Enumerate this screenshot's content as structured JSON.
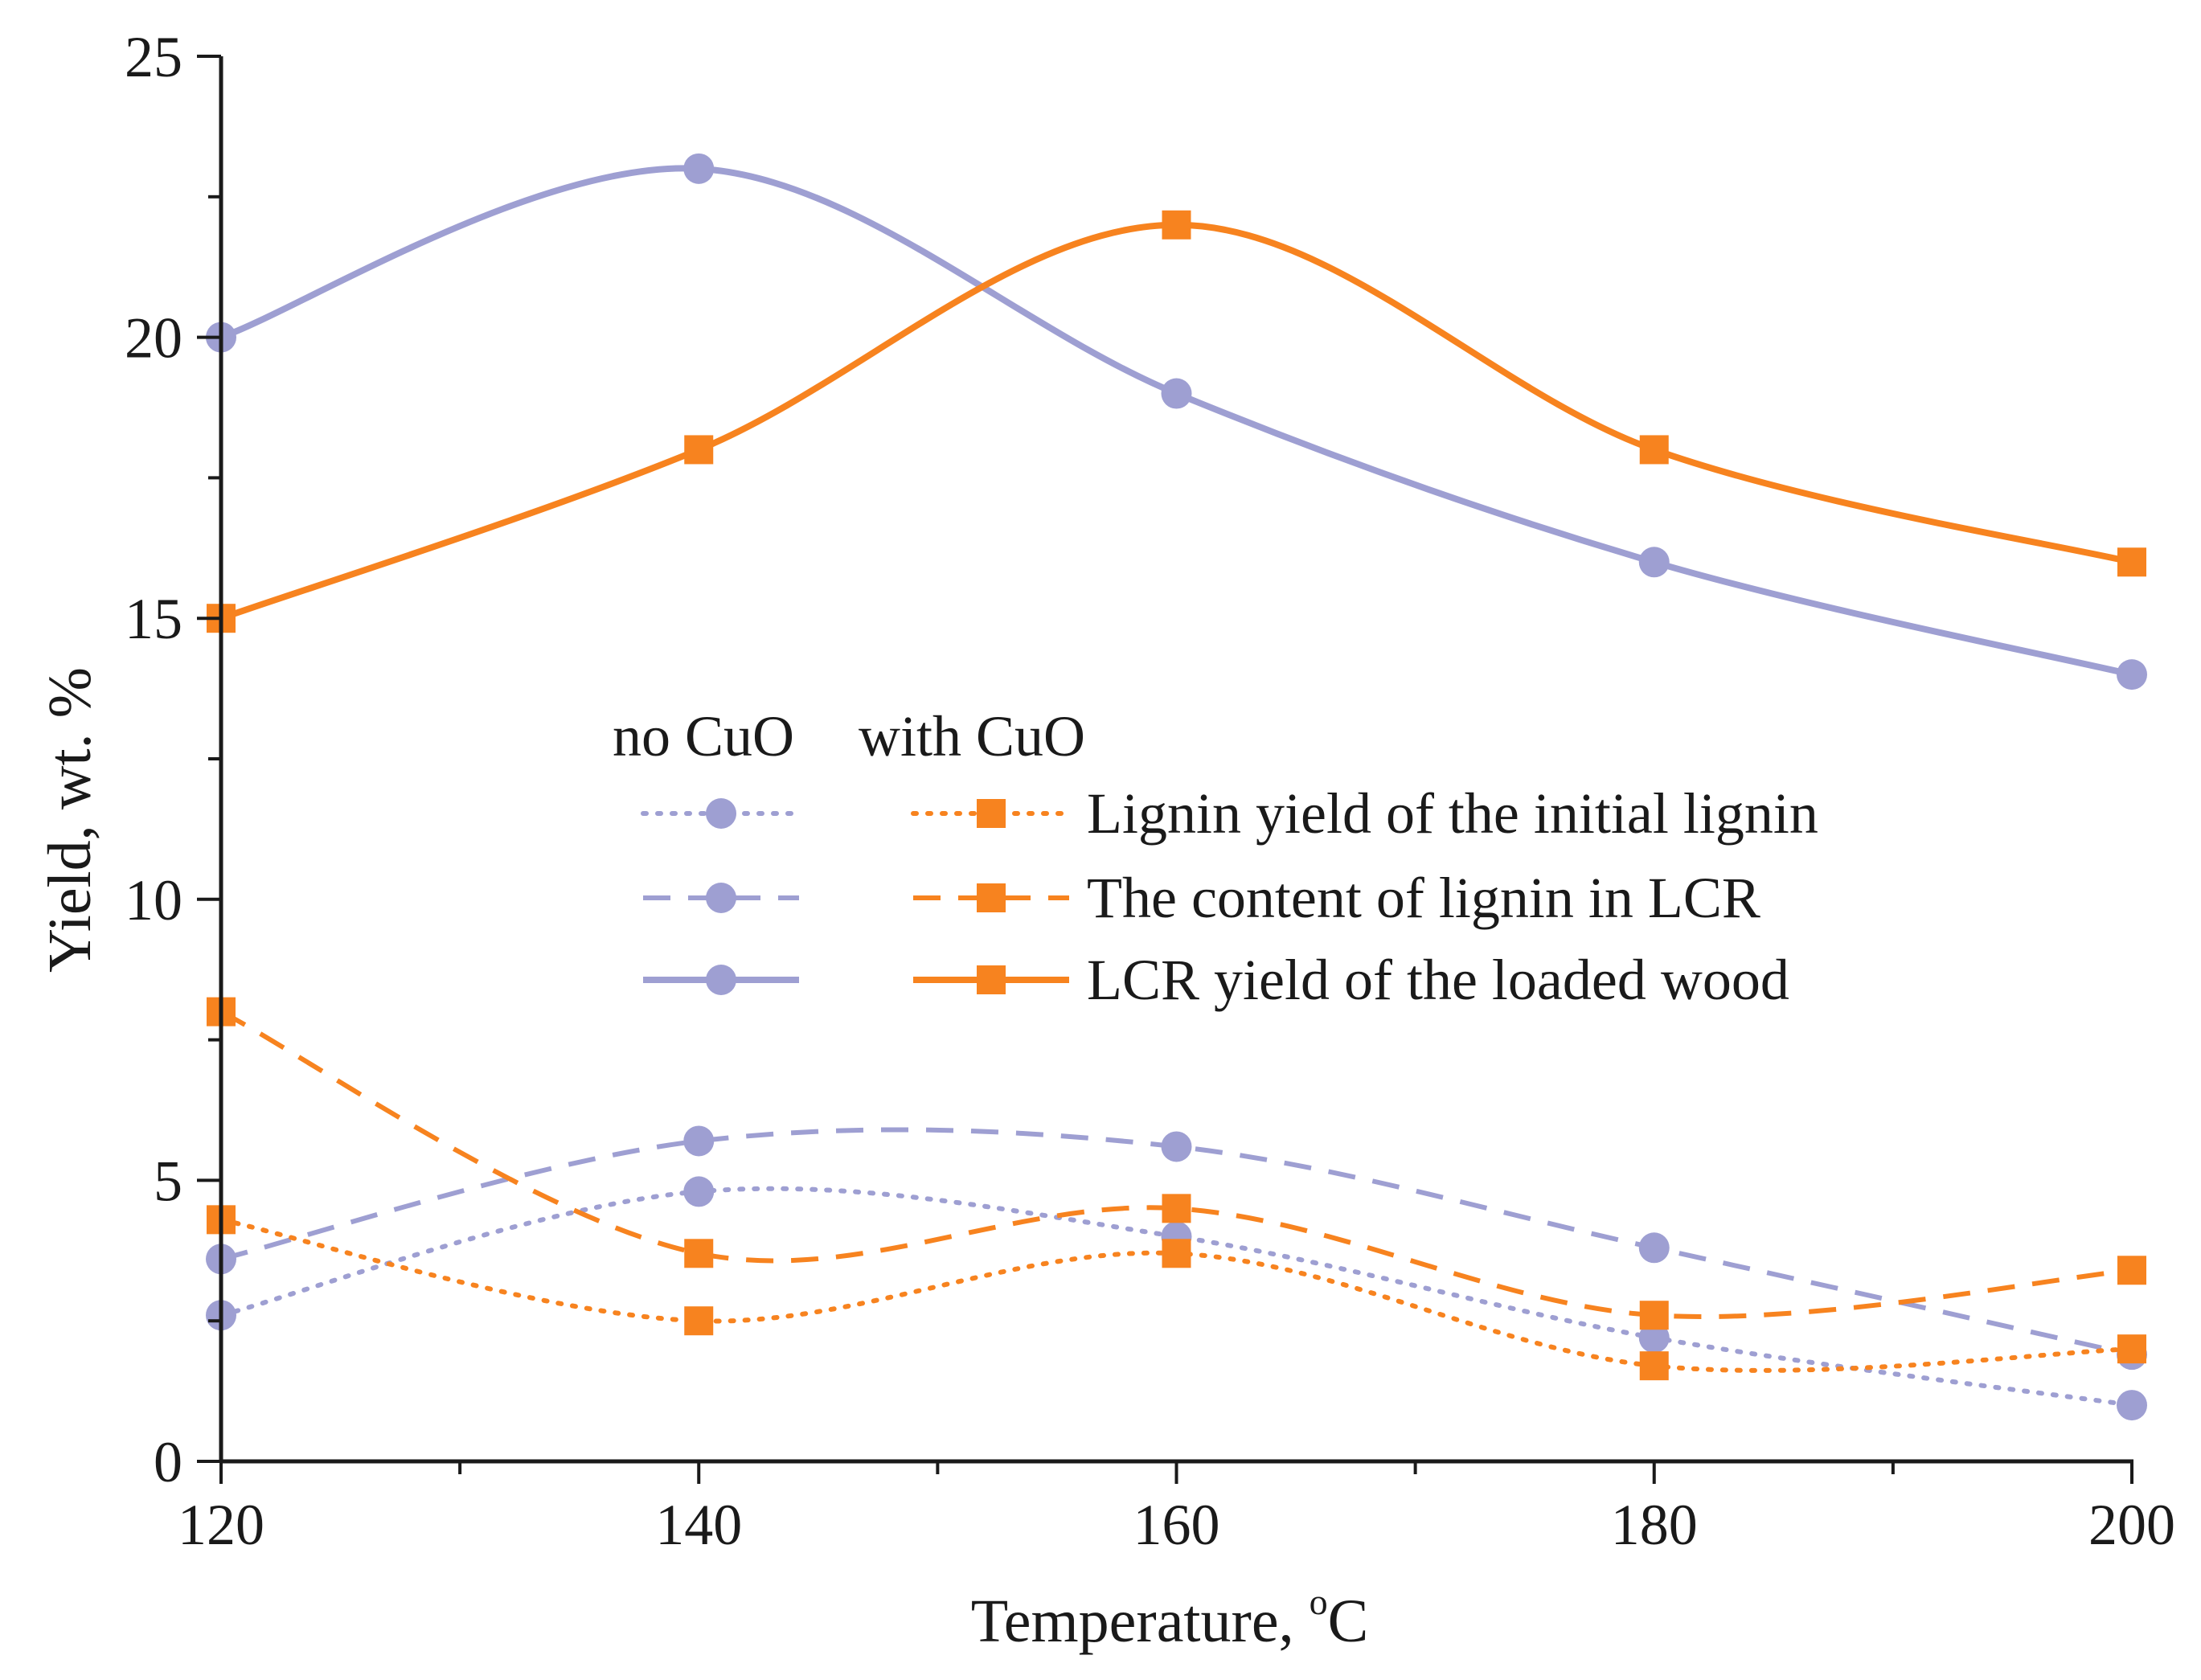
{
  "chart_data": {
    "type": "line",
    "title": "",
    "xlabel": "Temperature, ",
    "xlabel_unit": "C",
    "xlabel_degree": "o",
    "ylabel": "Yield, wt. %",
    "xlim": [
      120,
      200
    ],
    "ylim": [
      0,
      25
    ],
    "x_ticks": [
      120,
      140,
      160,
      180,
      200
    ],
    "x_tick_labels": [
      "120",
      "140",
      "160",
      "180",
      "200"
    ],
    "y_ticks": [
      0,
      5,
      10,
      15,
      20,
      25
    ],
    "y_tick_labels": [
      "0",
      "5",
      "10",
      "15",
      "20",
      "25"
    ],
    "x": [
      120,
      140,
      160,
      180,
      200
    ],
    "legend": {
      "placement": "center-right",
      "col_headers": [
        "no CuO",
        "with CuO"
      ],
      "rows": [
        "Lignin yield of the initial lignin",
        "The content of lignin in LCR",
        "LCR yield of the loaded wood"
      ]
    },
    "colors": {
      "no_cuo": "#9e9fd2",
      "with_cuo": "#f7831f"
    },
    "series": [
      {
        "name": "Lignin yield of the initial lignin (no CuO)",
        "group": "no CuO",
        "style": "dotted",
        "marker": "circle",
        "values": [
          2.6,
          4.8,
          4.0,
          2.2,
          1.0
        ]
      },
      {
        "name": "The content of lignin in LCR (no CuO)",
        "group": "no CuO",
        "style": "dashed",
        "marker": "circle",
        "values": [
          3.6,
          5.7,
          5.6,
          3.8,
          1.9
        ]
      },
      {
        "name": "LCR yield of the loaded wood (no CuO)",
        "group": "no CuO",
        "style": "solid",
        "marker": "circle",
        "values": [
          20,
          23,
          19,
          16,
          14
        ]
      },
      {
        "name": "Lignin yield of the initial lignin (with CuO)",
        "group": "with CuO",
        "style": "dotted",
        "marker": "square",
        "values": [
          4.3,
          2.5,
          3.7,
          1.7,
          2.0
        ]
      },
      {
        "name": "The content of lignin in LCR (with CuO)",
        "group": "with CuO",
        "style": "dashed",
        "marker": "square",
        "values": [
          8.0,
          3.7,
          4.5,
          2.6,
          3.4
        ]
      },
      {
        "name": "LCR yield of the loaded wood (with CuO)",
        "group": "with CuO",
        "style": "solid",
        "marker": "square",
        "values": [
          15,
          18,
          22,
          18,
          16
        ]
      }
    ]
  }
}
